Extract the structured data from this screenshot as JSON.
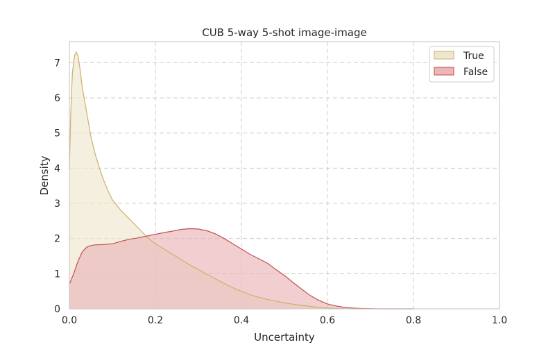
{
  "chart_data": {
    "type": "area",
    "title": "CUB 5-way 5-shot image-image",
    "xlabel": "Uncertainty",
    "ylabel": "Density",
    "xlim": [
      0.0,
      1.0
    ],
    "ylim": [
      0.0,
      7.6
    ],
    "xticks": [
      "0.0",
      "0.2",
      "0.4",
      "0.6",
      "0.8",
      "1.0"
    ],
    "yticks": [
      "0",
      "1",
      "2",
      "3",
      "4",
      "5",
      "6",
      "7"
    ],
    "grid": true,
    "legend_position": "top-right",
    "series": [
      {
        "name": "True",
        "line_color": "#c9b268",
        "fill_color": "#efe6cf",
        "points": [
          [
            0.0,
            4.0
          ],
          [
            0.003,
            5.5
          ],
          [
            0.007,
            6.7
          ],
          [
            0.012,
            7.2
          ],
          [
            0.016,
            7.3
          ],
          [
            0.02,
            7.2
          ],
          [
            0.025,
            6.8
          ],
          [
            0.03,
            6.3
          ],
          [
            0.04,
            5.6
          ],
          [
            0.05,
            4.9
          ],
          [
            0.06,
            4.4
          ],
          [
            0.07,
            4.0
          ],
          [
            0.08,
            3.65
          ],
          [
            0.09,
            3.35
          ],
          [
            0.1,
            3.1
          ],
          [
            0.12,
            2.8
          ],
          [
            0.14,
            2.55
          ],
          [
            0.16,
            2.3
          ],
          [
            0.18,
            2.05
          ],
          [
            0.2,
            1.85
          ],
          [
            0.22,
            1.7
          ],
          [
            0.24,
            1.55
          ],
          [
            0.26,
            1.4
          ],
          [
            0.28,
            1.25
          ],
          [
            0.3,
            1.12
          ],
          [
            0.32,
            0.98
          ],
          [
            0.34,
            0.85
          ],
          [
            0.36,
            0.72
          ],
          [
            0.38,
            0.6
          ],
          [
            0.4,
            0.5
          ],
          [
            0.42,
            0.4
          ],
          [
            0.44,
            0.33
          ],
          [
            0.46,
            0.27
          ],
          [
            0.48,
            0.22
          ],
          [
            0.5,
            0.17
          ],
          [
            0.52,
            0.13
          ],
          [
            0.54,
            0.1
          ],
          [
            0.56,
            0.07
          ],
          [
            0.58,
            0.04
          ],
          [
            0.6,
            0.02
          ],
          [
            0.62,
            0.01
          ],
          [
            0.65,
            0.0
          ],
          [
            0.8,
            0.0
          ]
        ]
      },
      {
        "name": "False",
        "line_color": "#c44e52",
        "fill_color": "#eab6b8",
        "points": [
          [
            0.0,
            0.7
          ],
          [
            0.01,
            1.0
          ],
          [
            0.02,
            1.35
          ],
          [
            0.03,
            1.62
          ],
          [
            0.04,
            1.75
          ],
          [
            0.05,
            1.8
          ],
          [
            0.06,
            1.82
          ],
          [
            0.08,
            1.83
          ],
          [
            0.1,
            1.85
          ],
          [
            0.12,
            1.92
          ],
          [
            0.14,
            1.98
          ],
          [
            0.16,
            2.02
          ],
          [
            0.18,
            2.07
          ],
          [
            0.2,
            2.12
          ],
          [
            0.22,
            2.17
          ],
          [
            0.24,
            2.21
          ],
          [
            0.26,
            2.26
          ],
          [
            0.28,
            2.28
          ],
          [
            0.3,
            2.27
          ],
          [
            0.32,
            2.22
          ],
          [
            0.34,
            2.13
          ],
          [
            0.36,
            2.0
          ],
          [
            0.38,
            1.85
          ],
          [
            0.4,
            1.7
          ],
          [
            0.42,
            1.55
          ],
          [
            0.44,
            1.43
          ],
          [
            0.46,
            1.3
          ],
          [
            0.48,
            1.12
          ],
          [
            0.5,
            0.95
          ],
          [
            0.52,
            0.75
          ],
          [
            0.54,
            0.56
          ],
          [
            0.56,
            0.38
          ],
          [
            0.58,
            0.24
          ],
          [
            0.6,
            0.14
          ],
          [
            0.62,
            0.08
          ],
          [
            0.64,
            0.04
          ],
          [
            0.66,
            0.02
          ],
          [
            0.68,
            0.01
          ],
          [
            0.72,
            0.0
          ],
          [
            0.8,
            0.0
          ]
        ]
      }
    ]
  }
}
